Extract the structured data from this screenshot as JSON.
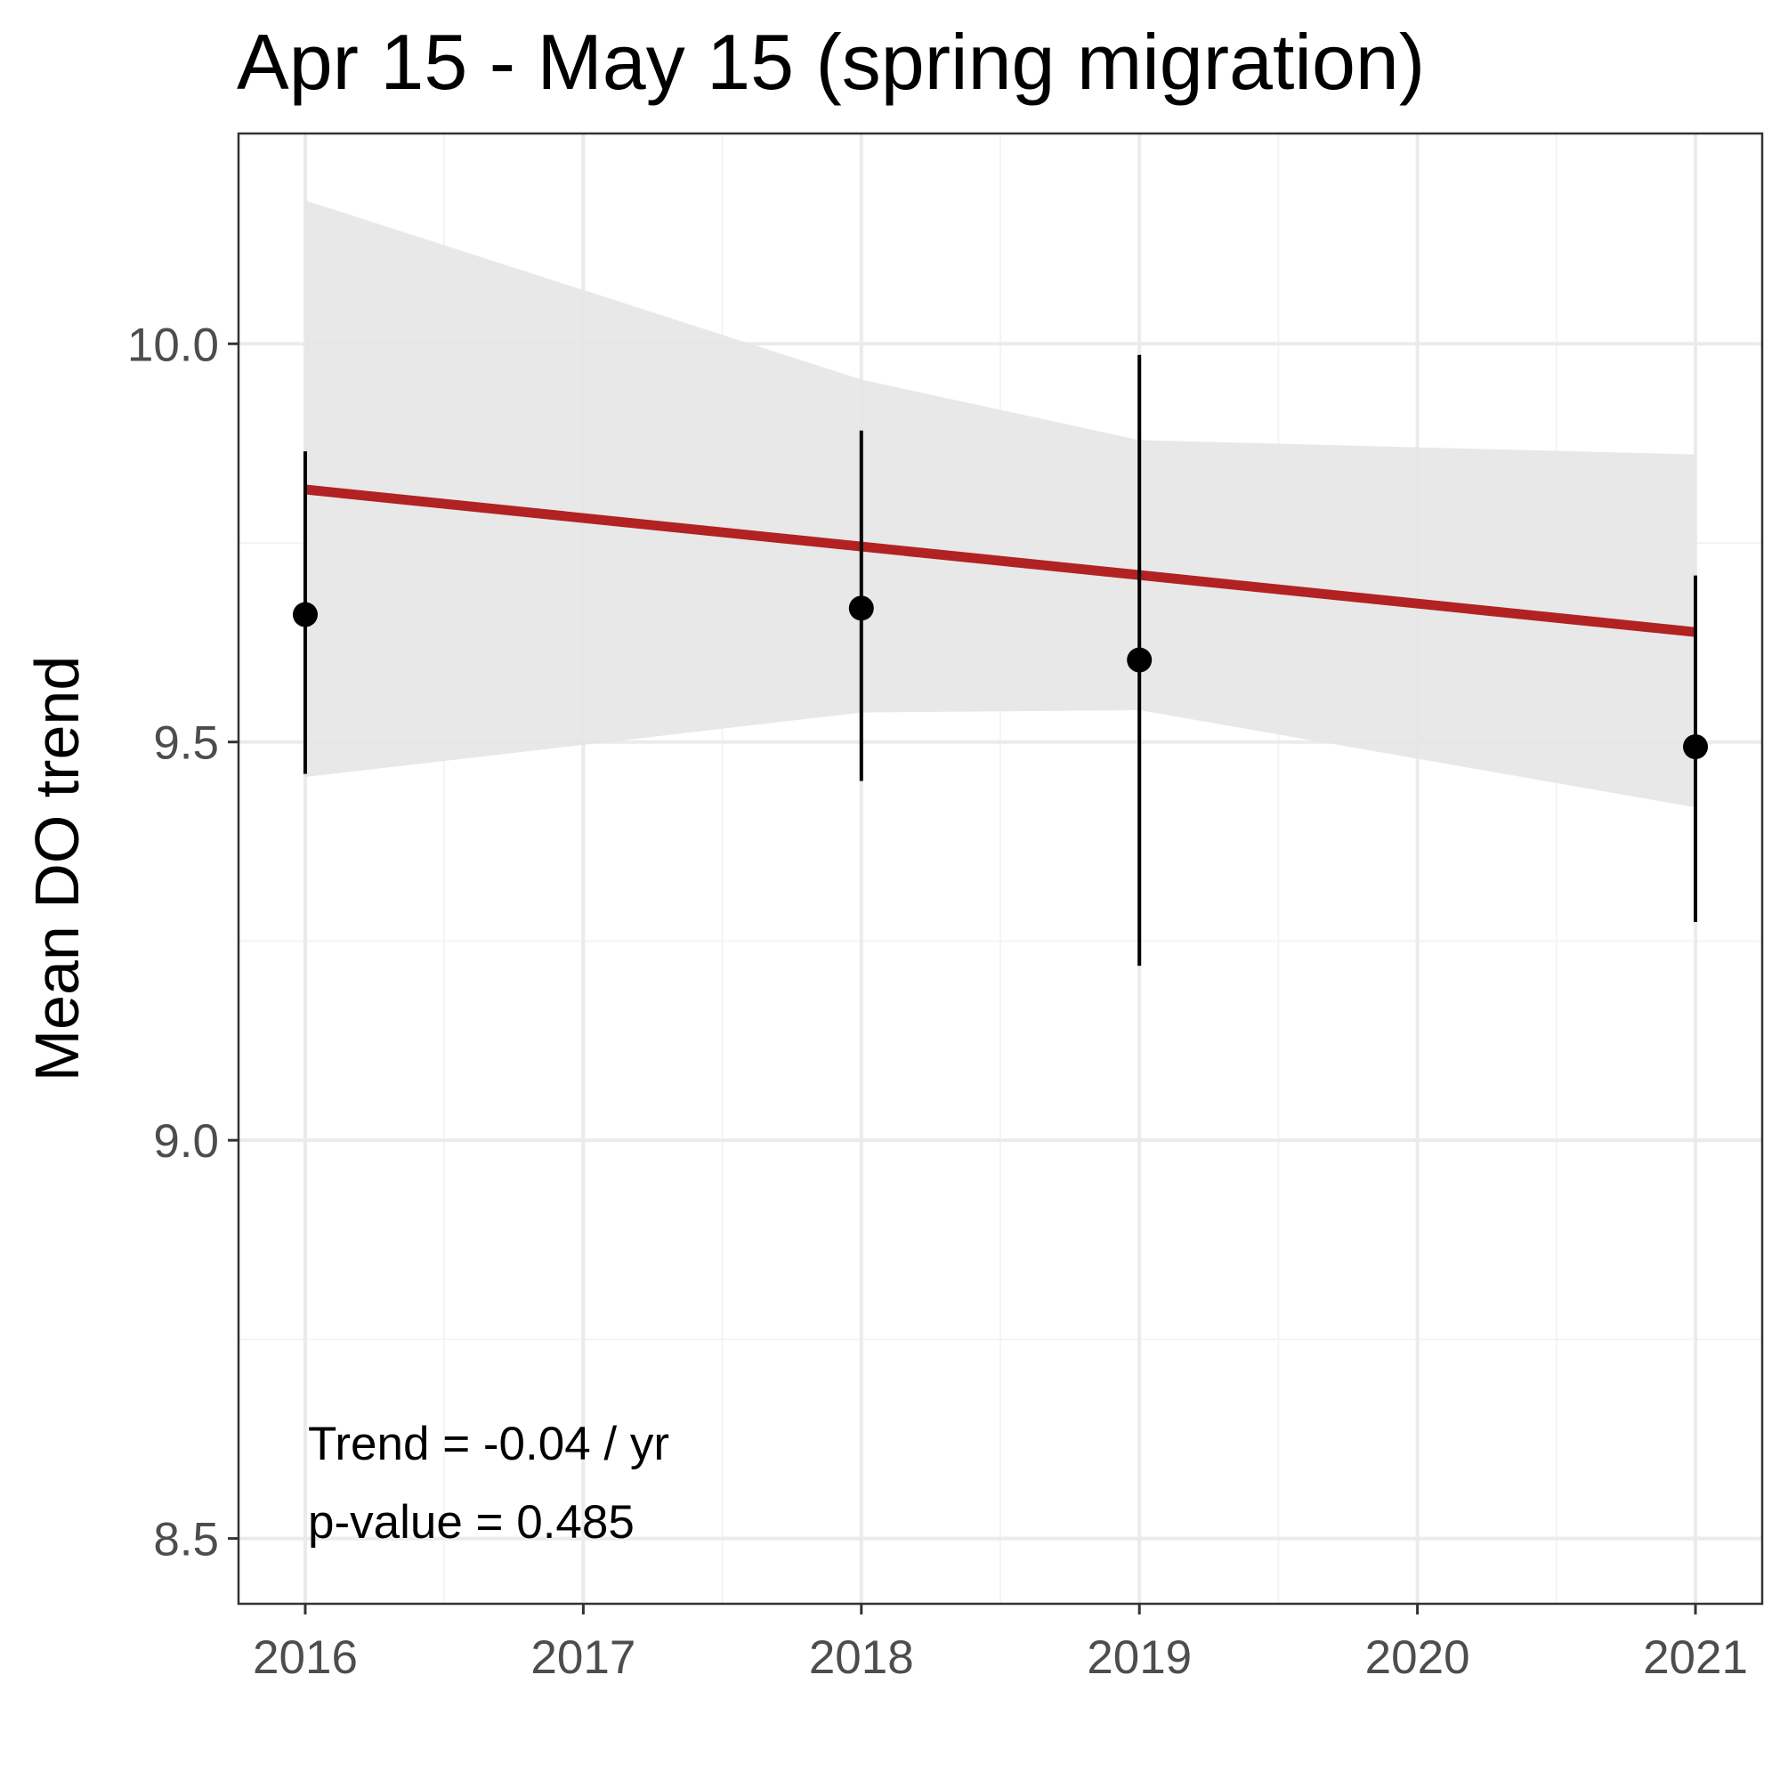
{
  "chart_data": {
    "type": "scatter",
    "title": "Apr 15 - May 15 (spring migration)",
    "xlabel": "",
    "ylabel": "Mean DO trend",
    "xlim": [
      2015.76,
      2021.24
    ],
    "ylim": [
      8.418,
      10.264
    ],
    "x_ticks": [
      2016,
      2017,
      2018,
      2019,
      2020,
      2021
    ],
    "x_tick_labels": [
      "2016",
      "2017",
      "2018",
      "2019",
      "2020",
      "2021"
    ],
    "y_ticks": [
      8.5,
      9.0,
      9.5,
      10.0
    ],
    "y_tick_labels": [
      "8.5",
      "9.0",
      "9.5",
      "10.0"
    ],
    "grid": true,
    "points": [
      {
        "x": 2016,
        "y": 9.66,
        "ymin": 9.46,
        "ymax": 9.865
      },
      {
        "x": 2018,
        "y": 9.668,
        "ymin": 9.451,
        "ymax": 9.891
      },
      {
        "x": 2019,
        "y": 9.603,
        "ymin": 9.219,
        "ymax": 9.986
      },
      {
        "x": 2021,
        "y": 9.494,
        "ymin": 9.274,
        "ymax": 9.709
      }
    ],
    "trend_line": {
      "x": [
        2016,
        2021
      ],
      "y": [
        9.817,
        9.638
      ],
      "color": "#b22222"
    },
    "confidence_band": [
      {
        "x": 2016,
        "lower": 9.456,
        "upper": 10.18
      },
      {
        "x": 2018,
        "lower": 9.537,
        "upper": 9.955
      },
      {
        "x": 2019,
        "lower": 9.54,
        "upper": 9.879
      },
      {
        "x": 2021,
        "lower": 9.418,
        "upper": 9.861
      }
    ],
    "annotations": [
      "Trend = -0.04 / yr",
      "p-value = 0.485"
    ],
    "colors": {
      "point": "#000000",
      "errorbar": "#000000",
      "trend": "#b22222",
      "band": "#e6e6e6",
      "grid_major": "#ebebeb",
      "grid_minor": "#f4f4f4",
      "panel_border": "#333333"
    }
  }
}
